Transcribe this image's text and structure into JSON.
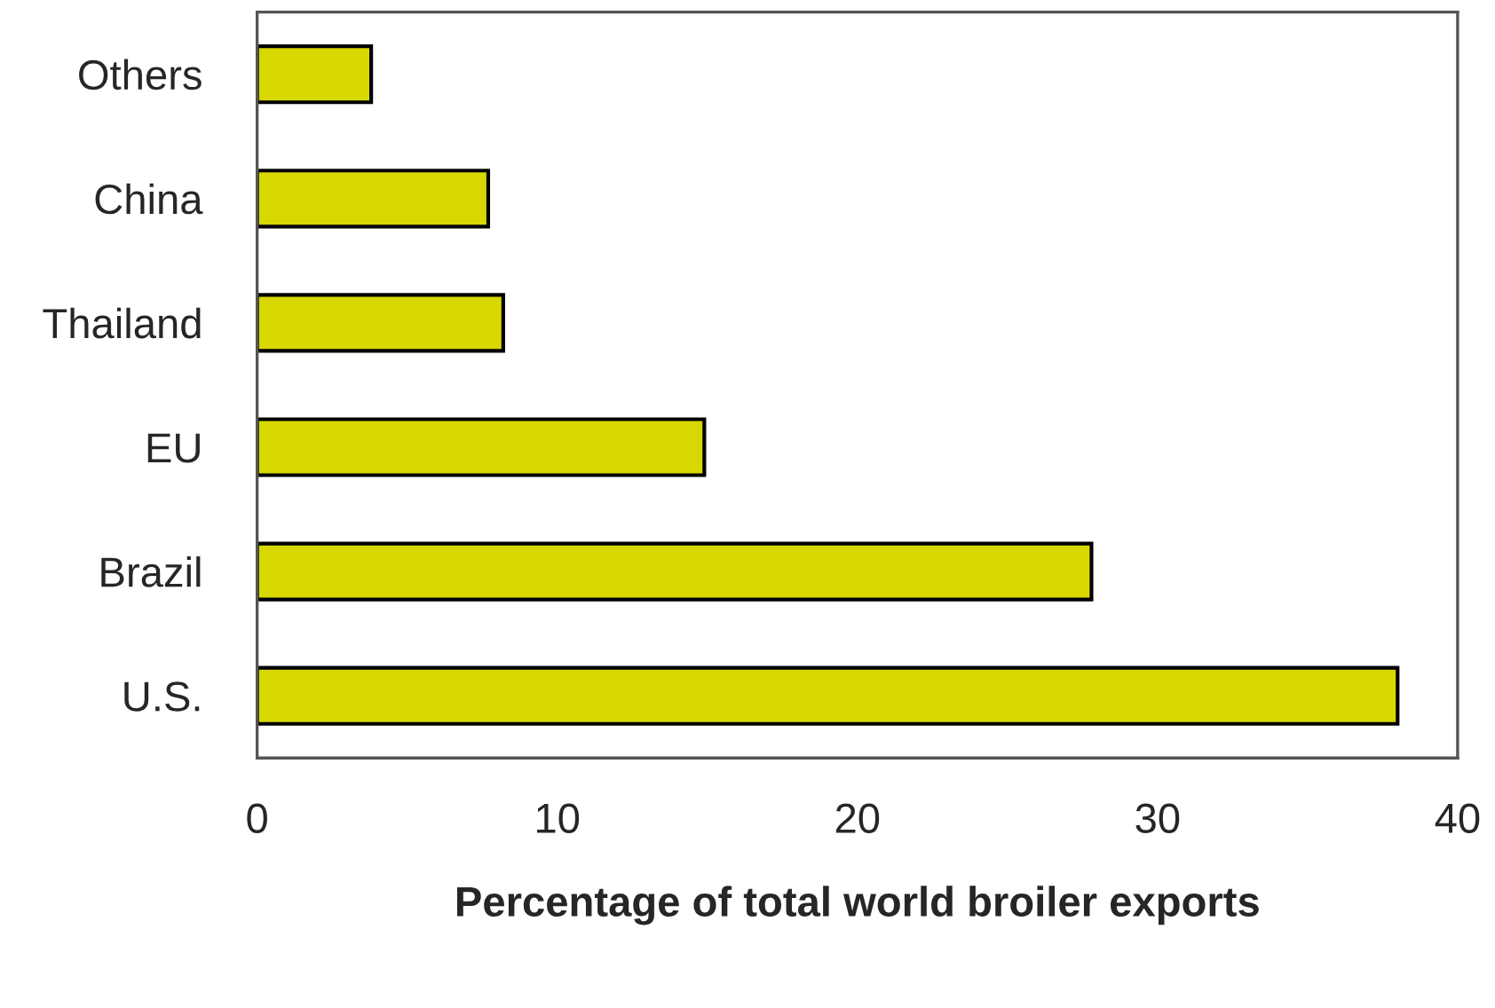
{
  "chart_data": {
    "type": "bar",
    "orientation": "horizontal",
    "xlabel": "Percentage of total world broiler exports",
    "categories": [
      "Others",
      "China",
      "Thailand",
      "EU",
      "Brazil",
      "U.S."
    ],
    "values": [
      3.8,
      7.7,
      8.2,
      14.9,
      27.8,
      38.0
    ],
    "color": "#d8d800",
    "xlim": [
      0,
      40
    ],
    "xticks": [
      0,
      10,
      20,
      30,
      40
    ],
    "grid": false,
    "legend": false
  }
}
